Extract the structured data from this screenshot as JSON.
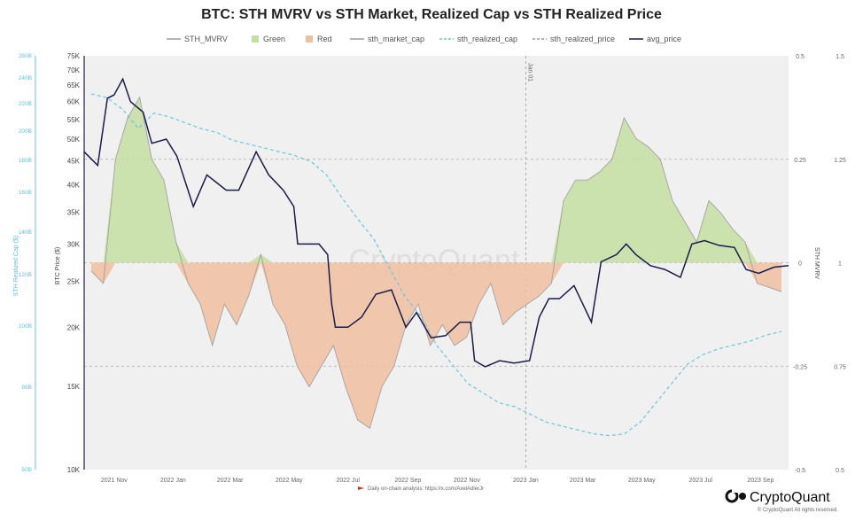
{
  "chart_data": {
    "type": "line",
    "title": "BTC: STH MVRV vs STH Market, Realized Cap vs STH Realized Price",
    "legend": [
      {
        "name": "STH_MVRV",
        "color": "#9a9a9a",
        "style": "solid"
      },
      {
        "name": "Green",
        "color": "#c5dfa2",
        "style": "swatch"
      },
      {
        "name": "Red",
        "color": "#f0bfa0",
        "style": "swatch"
      },
      {
        "name": "sth_market_cap",
        "color": "#9a9a9a",
        "style": "solid"
      },
      {
        "name": "sth_realized_cap",
        "color": "#6ec4dc",
        "style": "dashed"
      },
      {
        "name": "sth_realized_price",
        "color": "#9a9a9a",
        "style": "dashed"
      },
      {
        "name": "avg_price",
        "color": "#1b1b4a",
        "style": "solid"
      }
    ],
    "x_ticks": [
      "2021 Nov",
      "2022 Jan",
      "2022 Mar",
      "2022 May",
      "2022 Jul",
      "2022 Sep",
      "2022 Nov",
      "2023 Jan",
      "2023 Mar",
      "2023 May",
      "2023 Jul",
      "2023 Sep"
    ],
    "x_range": [
      "2021-10-01",
      "2023-09-30"
    ],
    "vline_label": "Jan 01",
    "left_axis": {
      "label": "BTC Price ($)",
      "scale": "log",
      "ticks": [
        "10K",
        "15K",
        "20K",
        "25K",
        "30K",
        "35K",
        "40K",
        "45K",
        "50K",
        "55K",
        "60K",
        "65K",
        "70K",
        "75K"
      ],
      "ylim": [
        10000,
        75000
      ]
    },
    "far_left_axis": {
      "label": "STH Realized Cap ($)",
      "ticks": [
        "50B",
        "80B",
        "100B",
        "120B",
        "140B",
        "160B",
        "180B",
        "200B",
        "220B",
        "240B",
        "260B"
      ]
    },
    "right_axis": {
      "label": "STH MVRV",
      "ticks": [
        "0.5",
        "0.25",
        "0",
        "-0.25",
        "-0.5"
      ],
      "ylim": [
        -0.5,
        0.5
      ]
    },
    "far_right_axis": {
      "ticks": [
        "1.5",
        "1.25",
        "1",
        "0.75",
        "0.5"
      ],
      "ylim": [
        0.5,
        1.5
      ]
    },
    "series": [
      {
        "name": "avg_price",
        "x": [
          "2021-10-01",
          "2021-10-15",
          "2021-10-25",
          "2021-11-01",
          "2021-11-10",
          "2021-11-18",
          "2021-12-01",
          "2021-12-10",
          "2021-12-25",
          "2022-01-05",
          "2022-01-22",
          "2022-02-05",
          "2022-02-25",
          "2022-03-10",
          "2022-03-28",
          "2022-04-10",
          "2022-04-25",
          "2022-05-06",
          "2022-05-10",
          "2022-05-20",
          "2022-06-01",
          "2022-06-10",
          "2022-06-14",
          "2022-06-18",
          "2022-07-01",
          "2022-07-15",
          "2022-07-30",
          "2022-08-15",
          "2022-08-30",
          "2022-09-10",
          "2022-09-25",
          "2022-10-10",
          "2022-10-25",
          "2022-11-05",
          "2022-11-09",
          "2022-11-20",
          "2022-12-05",
          "2022-12-20",
          "2023-01-05",
          "2023-01-15",
          "2023-01-25",
          "2023-02-05",
          "2023-02-20",
          "2023-03-10",
          "2023-03-20",
          "2023-04-05",
          "2023-04-15",
          "2023-04-25",
          "2023-05-10",
          "2023-05-25",
          "2023-06-10",
          "2023-06-22",
          "2023-07-05",
          "2023-07-20",
          "2023-08-05",
          "2023-08-17",
          "2023-08-30",
          "2023-09-15",
          "2023-09-30"
        ],
        "values": [
          47000,
          44000,
          61000,
          62000,
          67000,
          60000,
          57000,
          49000,
          50000,
          46000,
          36000,
          42000,
          39000,
          39000,
          47000,
          42000,
          39000,
          36000,
          30000,
          30000,
          30000,
          28500,
          22500,
          20000,
          20000,
          21000,
          23500,
          24000,
          20000,
          21500,
          19000,
          19200,
          20500,
          20500,
          17000,
          16500,
          17000,
          16800,
          17000,
          21000,
          23000,
          23000,
          24500,
          20500,
          27500,
          28500,
          30000,
          28500,
          27000,
          26500,
          25500,
          30000,
          30500,
          29800,
          29500,
          26500,
          26000,
          26800,
          27000
        ]
      },
      {
        "name": "sth_realized_cap",
        "values_b": [
          250,
          248,
          242,
          232,
          240,
          238,
          235,
          232,
          230,
          226,
          224,
          222,
          220,
          218,
          215,
          208,
          196,
          185,
          175,
          160,
          145,
          135,
          120,
          110,
          100,
          95,
          90,
          88,
          84,
          80,
          78,
          76,
          74,
          73,
          74,
          80,
          90,
          100,
          110,
          115,
          118,
          120,
          122,
          125,
          127
        ]
      },
      {
        "name": "STH_MVRV",
        "note": "area filled Green above 0, Red below 0",
        "values": [
          -0.02,
          -0.05,
          0.25,
          0.35,
          0.4,
          0.25,
          0.2,
          0.05,
          -0.05,
          -0.1,
          -0.2,
          -0.1,
          -0.15,
          -0.08,
          0.02,
          -0.1,
          -0.15,
          -0.25,
          -0.3,
          -0.25,
          -0.2,
          -0.3,
          -0.38,
          -0.4,
          -0.3,
          -0.25,
          -0.15,
          -0.1,
          -0.2,
          -0.15,
          -0.2,
          -0.18,
          -0.1,
          -0.05,
          -0.15,
          -0.12,
          -0.1,
          -0.08,
          -0.05,
          0.15,
          0.2,
          0.2,
          0.22,
          0.25,
          0.35,
          0.3,
          0.28,
          0.25,
          0.15,
          0.1,
          0.05,
          0.15,
          0.12,
          0.08,
          0.05,
          -0.05,
          -0.06,
          -0.07
        ]
      }
    ]
  },
  "watermark": "CryptoQuant",
  "footer": {
    "source_note": "Daily on-chain analysis: https://x.com/AxelAdlerJr",
    "brand": "CryptoQuant",
    "copyright": "© CryptoQuant All rights reserved."
  }
}
